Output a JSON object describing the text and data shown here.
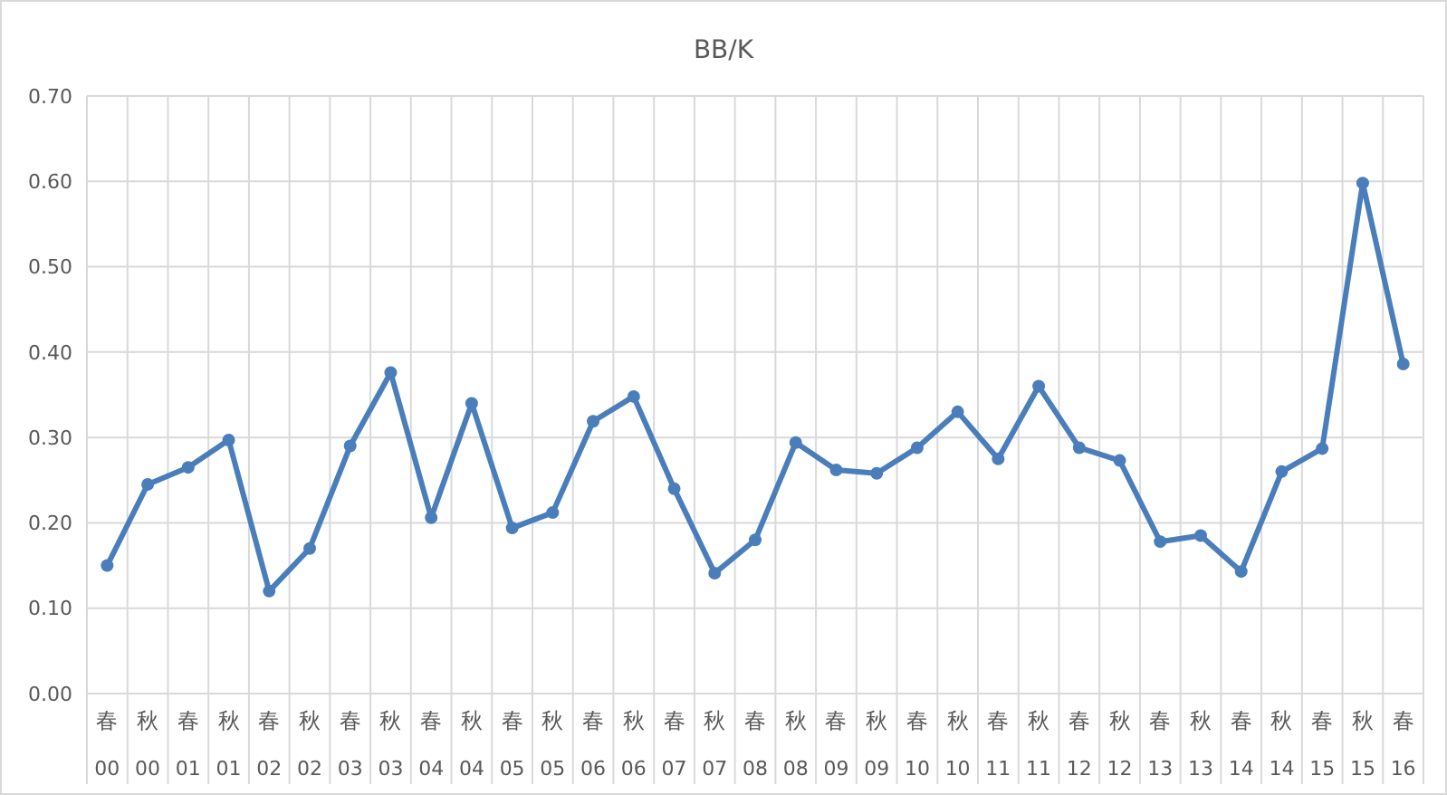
{
  "chart_data": {
    "type": "line",
    "title": "BB/K",
    "categories": [
      "春\n00",
      "秋\n00",
      "春\n01",
      "秋\n01",
      "春\n02",
      "秋\n02",
      "春\n03",
      "秋\n03",
      "春\n04",
      "秋\n04",
      "春\n05",
      "秋\n05",
      "春\n06",
      "秋\n06",
      "春\n07",
      "秋\n07",
      "春\n08",
      "秋\n08",
      "春\n09",
      "秋\n09",
      "春\n10",
      "秋\n10",
      "春\n11",
      "秋\n11",
      "春\n12",
      "秋\n12",
      "春\n13",
      "秋\n13",
      "春\n14",
      "秋\n14",
      "春\n15",
      "秋\n15",
      "春\n16"
    ],
    "series": [
      {
        "color": "#4a7ebb",
        "values": [
          0.15,
          0.245,
          0.265,
          0.297,
          0.12,
          0.17,
          0.29,
          0.376,
          0.206,
          0.34,
          0.194,
          0.212,
          0.319,
          0.348,
          0.24,
          0.141,
          0.18,
          0.294,
          0.262,
          0.258,
          0.288,
          0.33,
          0.275,
          0.36,
          0.288,
          0.273,
          0.178,
          0.185,
          0.143,
          0.26,
          0.287,
          0.598,
          0.386
        ]
      }
    ],
    "ylim": [
      0,
      0.7
    ],
    "yticks": [
      {
        "value": 0,
        "label": "0.00"
      },
      {
        "value": 0.1,
        "label": "0.10"
      },
      {
        "value": 0.2,
        "label": "0.20"
      },
      {
        "value": 0.3,
        "label": "0.30"
      },
      {
        "value": 0.4,
        "label": "0.40"
      },
      {
        "value": 0.5,
        "label": "0.50"
      },
      {
        "value": 0.6,
        "label": "0.60"
      },
      {
        "value": 0.7,
        "label": "0.70"
      }
    ],
    "grid": true,
    "marker": "circle",
    "line_style": "solid"
  }
}
